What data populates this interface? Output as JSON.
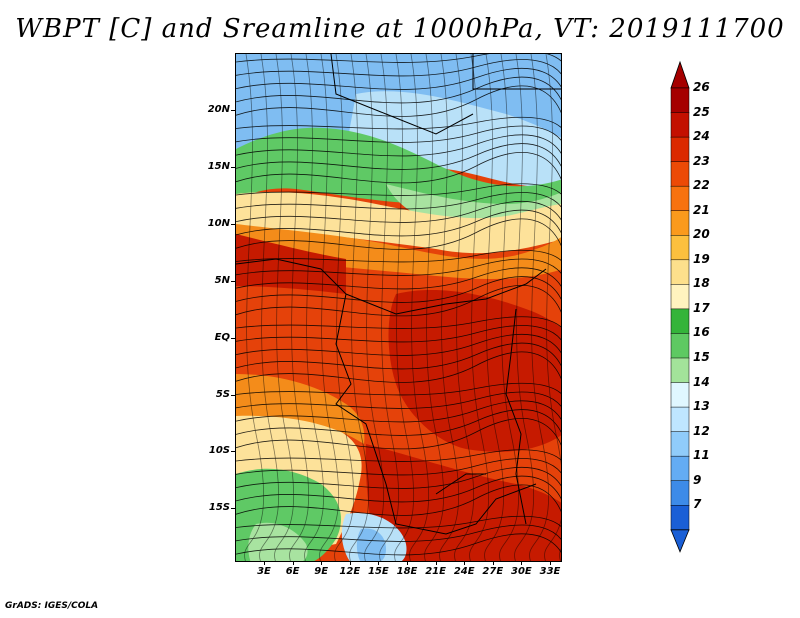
{
  "title": "WBPT [C] and Sreamline at 1000hPa, VT: 2019111700",
  "credit": "GrADS: IGES/COLA",
  "y_axis": [
    "20N",
    "15N",
    "10N",
    "5N",
    "EQ",
    "5S",
    "10S",
    "15S"
  ],
  "x_axis": [
    "3E",
    "6E",
    "9E",
    "12E",
    "15E",
    "18E",
    "21E",
    "24E",
    "27E",
    "30E",
    "33E"
  ],
  "colorbar": {
    "labels": [
      "26",
      "25",
      "24",
      "23",
      "22",
      "21",
      "20",
      "19",
      "18",
      "17",
      "16",
      "15",
      "14",
      "13",
      "12",
      "11",
      "9",
      "7"
    ],
    "colors": [
      "#a50000",
      "#c31000",
      "#db2a00",
      "#ec4a06",
      "#f7720f",
      "#fa9a1c",
      "#fcc03e",
      "#fde08c",
      "#fff3bf",
      "#34b43a",
      "#5ec962",
      "#a3e39a",
      "#e0f7ff",
      "#bfe6ff",
      "#90ccfa",
      "#64acf3",
      "#3d8be8",
      "#1a5fd6"
    ]
  },
  "map_colors": {
    "deep": "#c61a00",
    "warm": "#e5420a",
    "orange": "#f48c1a",
    "yellow": "#fde29a",
    "green": "#5fc965",
    "light_green": "#a8e3a0",
    "light_blue": "#b9e1f8",
    "blue": "#7fbdf2"
  }
}
